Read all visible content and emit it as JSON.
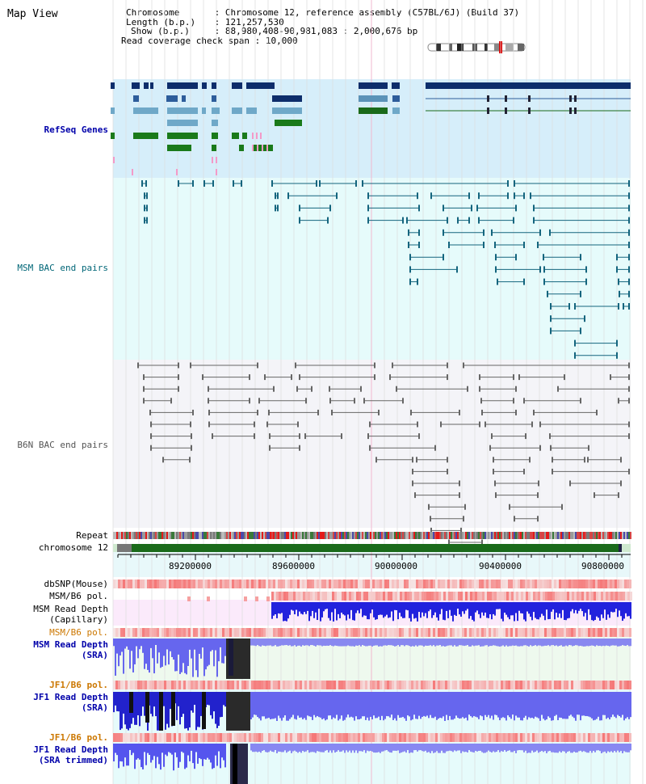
{
  "view": {
    "title": "Map View",
    "chromosome_key": "Chromosome",
    "chromosome_value": "Chromosome 12, reference assembly (C57BL/6J) (Build 37)",
    "length_key": "Length (b.p.)",
    "length_value": "121,257,530",
    "show_key": "Show (b.p.)",
    "show_value": "88,980,408-90,981,083 : 2,000,676 bp",
    "coverage_key": "Read coverage check span",
    "coverage_value": "10,000"
  },
  "tracks": {
    "refseq": "RefSeq Genes",
    "msm_bac": "MSM BAC end pairs",
    "b6n_bac": "B6N BAC end pairs",
    "repeat": "Repeat",
    "chromosome": "chromosome 12",
    "dbsnp": "dbSNP(Mouse)",
    "msm_b6_pol_1": "MSM/B6 pol.",
    "msm_depth_cap_1": "MSM Read Depth",
    "msm_depth_cap_2": "(Capillary)",
    "msm_b6_pol_2": "MSM/B6 pol.",
    "msm_depth_sra_1": "MSM Read Depth",
    "msm_depth_sra_2": "(SRA)",
    "jf1_b6_pol_1": "JF1/B6 pol.",
    "jf1_depth_sra_1": "JF1 Read Depth",
    "jf1_depth_sra_2": "(SRA)",
    "jf1_b6_pol_2": "JF1/B6 pol.",
    "jf1_trim_1": "JF1 Read Depth",
    "jf1_trim_2": "(SRA trimmed)"
  },
  "axis": {
    "ticks": [
      "89200000",
      "89600000",
      "90000000",
      "90400000",
      "90800000"
    ]
  },
  "colors": {
    "refseq_bg": "#d6eefa",
    "msm_bg": "#e6fbfb",
    "b6n_bg": "#f4f4f8",
    "refseq_label": "#0000aa",
    "msm_label": "#006677",
    "b6n_label": "#555555",
    "depth_label": "#0000aa",
    "pol_label": "#cc7700"
  }
}
